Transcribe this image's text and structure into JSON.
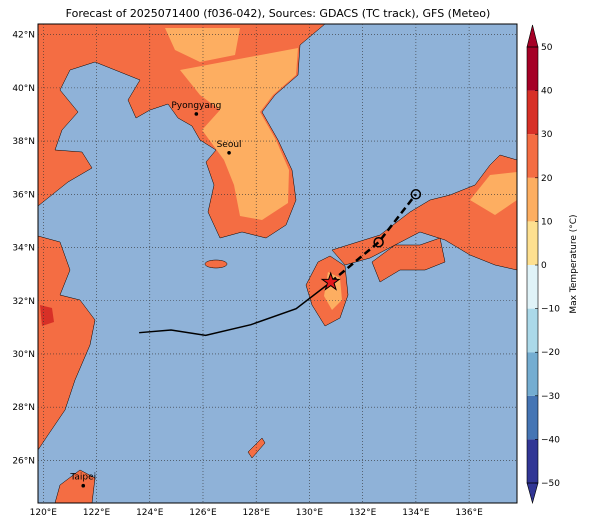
{
  "map": {
    "title": "Forecast of 2025071400 (f036-042), Sources: GDACS (TC track), GFS (Meteo)",
    "xlim": [
      119.8,
      137.8
    ],
    "ylim": [
      24.4,
      42.4
    ],
    "xticks": [
      {
        "value": 120,
        "label": "120°E"
      },
      {
        "value": 122,
        "label": "122°E"
      },
      {
        "value": 124,
        "label": "124°E"
      },
      {
        "value": 126,
        "label": "126°E"
      },
      {
        "value": 128,
        "label": "128°E"
      },
      {
        "value": 130,
        "label": "130°E"
      },
      {
        "value": 132,
        "label": "132°E"
      },
      {
        "value": 134,
        "label": "134°E"
      },
      {
        "value": 136,
        "label": "136°E"
      }
    ],
    "yticks": [
      {
        "value": 26,
        "label": "26°N"
      },
      {
        "value": 28,
        "label": "28°N"
      },
      {
        "value": 30,
        "label": "30°N"
      },
      {
        "value": 32,
        "label": "32°N"
      },
      {
        "value": 34,
        "label": "34°N"
      },
      {
        "value": 36,
        "label": "36°N"
      },
      {
        "value": 38,
        "label": "38°N"
      },
      {
        "value": 40,
        "label": "40°N"
      },
      {
        "value": 42,
        "label": "42°N"
      }
    ],
    "colorbar": {
      "label": "Max Temperature (°C)",
      "ticks": [
        {
          "value": -50,
          "label": "−50"
        },
        {
          "value": -40,
          "label": "−40"
        },
        {
          "value": -30,
          "label": "−30"
        },
        {
          "value": -20,
          "label": "−20"
        },
        {
          "value": -10,
          "label": "−10"
        },
        0,
        10,
        20,
        30,
        40,
        50
      ],
      "colors": [
        "#313695",
        "#4575b4",
        "#74add1",
        "#abd9e9",
        "#e0f3f8",
        "#fee090",
        "#fdae61",
        "#f46d43",
        "#d73027",
        "#a50026"
      ]
    },
    "cities": [
      {
        "name": "Pyongyang",
        "lon": 125.75,
        "lat": 39.02
      },
      {
        "name": "Seoul",
        "lon": 126.98,
        "lat": 37.56
      },
      {
        "name": "Taipei",
        "lon": 121.5,
        "lat": 25.05
      }
    ],
    "track": {
      "observed": {
        "lon": [
          123.6,
          124.8,
          126.1,
          127.8,
          129.5,
          130.8
        ],
        "lat": [
          30.8,
          30.9,
          30.7,
          31.1,
          31.7,
          32.7
        ]
      },
      "forecast": {
        "lon": [
          130.8,
          132.6,
          134.0
        ],
        "lat": [
          32.7,
          34.2,
          36.0
        ]
      }
    }
  }
}
